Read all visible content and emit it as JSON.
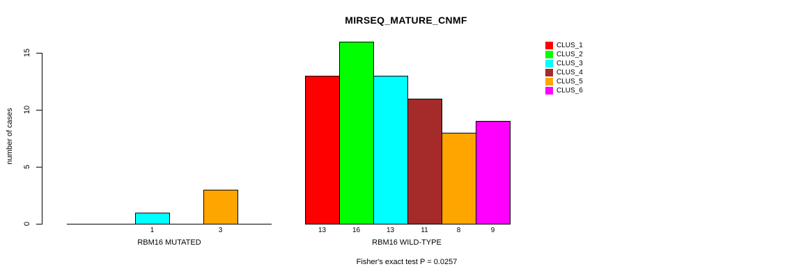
{
  "chart_data": {
    "type": "bar",
    "title": "MIRSEQ_MATURE_CNMF",
    "ylabel": "number of cases",
    "xlabel": "",
    "yticks": [
      0,
      5,
      10,
      15
    ],
    "ylim": [
      0,
      16
    ],
    "grid": false,
    "legend_position": "right",
    "series": [
      {
        "name": "CLUS_1",
        "color": "#FF0000"
      },
      {
        "name": "CLUS_2",
        "color": "#00FF00"
      },
      {
        "name": "CLUS_3",
        "color": "#00FFFF"
      },
      {
        "name": "CLUS_4",
        "color": "#A52A2A"
      },
      {
        "name": "CLUS_5",
        "color": "#FFA500"
      },
      {
        "name": "CLUS_6",
        "color": "#FF00FF"
      }
    ],
    "groups": [
      {
        "label": "RBM16 MUTATED",
        "values": [
          0,
          0,
          1,
          0,
          3,
          0
        ],
        "bar_labels": [
          "",
          "",
          "1",
          "",
          "3",
          ""
        ]
      },
      {
        "label": "RBM16 WILD-TYPE",
        "values": [
          13,
          16,
          13,
          11,
          8,
          9
        ],
        "bar_labels": [
          "13",
          "16",
          "13",
          "11",
          "8",
          "9"
        ]
      }
    ],
    "annotation": "Fisher's exact test P = 0.0257"
  }
}
